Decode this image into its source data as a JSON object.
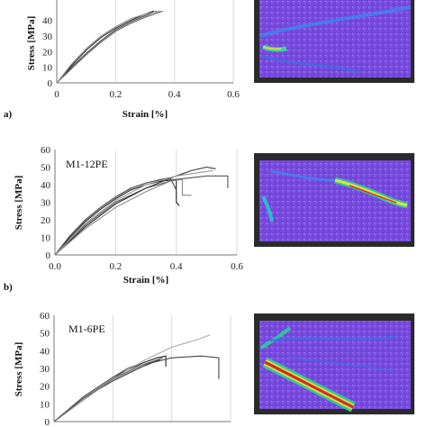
{
  "panels": [
    {
      "panel_label": "a)",
      "series_label": "",
      "chart_data": {
        "type": "line",
        "title": "",
        "xlabel": "Strain [%]",
        "ylabel": "Stress [MPa]",
        "xlim": [
          0,
          0.6
        ],
        "ylim": [
          0,
          60
        ],
        "xticks": [
          "0",
          "0.2",
          "0.4",
          "0.6"
        ],
        "yticks": [
          "0",
          "10",
          "20",
          "30",
          "40"
        ],
        "grid": "vertical",
        "series": [
          {
            "color": "#222222",
            "x": [
              0,
              0.05,
              0.1,
              0.15,
              0.2,
              0.25,
              0.3,
              0.33
            ],
            "y": [
              0,
              11,
              21,
              29,
              35,
              40,
              44,
              46
            ]
          },
          {
            "color": "#444444",
            "x": [
              0,
              0.05,
              0.1,
              0.15,
              0.2,
              0.25,
              0.3,
              0.34
            ],
            "y": [
              0,
              10,
              19,
              27,
              34,
              39,
              43,
              46
            ]
          },
          {
            "color": "#666666",
            "x": [
              0,
              0.05,
              0.1,
              0.15,
              0.2,
              0.25,
              0.3,
              0.36
            ],
            "y": [
              0,
              9,
              18,
              26,
              33,
              38,
              42,
              46
            ]
          },
          {
            "color": "#999999",
            "x": [
              0,
              0.05,
              0.1,
              0.15,
              0.2,
              0.25,
              0.3,
              0.35
            ],
            "y": [
              0,
              12,
              22,
              30,
              36,
              41,
              44,
              46
            ]
          }
        ]
      }
    },
    {
      "panel_label": "b)",
      "series_label": "M1-12PE",
      "chart_data": {
        "type": "line",
        "title": "",
        "xlabel": "Strain [%]",
        "ylabel": "Stress [MPa]",
        "xlim": [
          0,
          0.6
        ],
        "ylim": [
          0,
          60
        ],
        "xticks": [
          "0.0",
          "0.2",
          "0.4",
          "0.6"
        ],
        "yticks": [
          "0",
          "10",
          "20",
          "30",
          "40",
          "50",
          "60"
        ],
        "grid": "vertical",
        "series": [
          {
            "color": "#222222",
            "x": [
              0,
              0.05,
              0.1,
              0.15,
              0.2,
              0.25,
              0.3,
              0.35,
              0.4,
              0.4,
              0.41
            ],
            "y": [
              0,
              10,
              19,
              26,
              32,
              37,
              40,
              42,
              43,
              30,
              28
            ]
          },
          {
            "color": "#444444",
            "x": [
              0,
              0.05,
              0.1,
              0.15,
              0.2,
              0.25,
              0.3,
              0.35,
              0.38,
              0.4
            ],
            "y": [
              0,
              11,
              20,
              27,
              33,
              38,
              41,
              43,
              44,
              37
            ]
          },
          {
            "color": "#555555",
            "x": [
              0,
              0.1,
              0.2,
              0.3,
              0.4,
              0.5,
              0.57,
              0.57
            ],
            "y": [
              0,
              17,
              30,
              38,
              43,
              45,
              45,
              38
            ]
          },
          {
            "color": "#333333",
            "x": [
              0,
              0.1,
              0.2,
              0.3,
              0.4,
              0.45,
              0.5,
              0.53
            ],
            "y": [
              0,
              16,
              29,
              38,
              45,
              48,
              50,
              49
            ]
          },
          {
            "color": "#999999",
            "x": [
              0,
              0.1,
              0.2,
              0.3,
              0.4,
              0.48,
              0.52
            ],
            "y": [
              0,
              18,
              31,
              40,
              45,
              47,
              48
            ]
          },
          {
            "color": "#888888",
            "x": [
              0,
              0.1,
              0.2,
              0.3,
              0.38,
              0.42,
              0.42,
              0.45
            ],
            "y": [
              0,
              15,
              27,
              36,
              42,
              43,
              34,
              34
            ]
          }
        ]
      }
    },
    {
      "panel_label": "",
      "series_label": "M1-6PE",
      "chart_data": {
        "type": "line",
        "title": "",
        "xlabel": "",
        "ylabel": "Stress [MPa]",
        "xlim": [
          0,
          0.6
        ],
        "ylim": [
          0,
          60
        ],
        "xticks": [],
        "yticks": [
          "0",
          "10",
          "20",
          "30",
          "40",
          "50",
          "60"
        ],
        "grid": "vertical",
        "series": [
          {
            "color": "#222222",
            "x": [
              0,
              0.1,
              0.2,
              0.3,
              0.35,
              0.38,
              0.38
            ],
            "y": [
              0,
              14,
              25,
              33,
              36,
              37,
              31
            ]
          },
          {
            "color": "#444444",
            "x": [
              0,
              0.1,
              0.2,
              0.3,
              0.4,
              0.5,
              0.56,
              0.56
            ],
            "y": [
              0,
              13,
              24,
              32,
              36,
              37,
              36,
              24
            ]
          },
          {
            "color": "#333333",
            "x": [
              0,
              0.1,
              0.2,
              0.3,
              0.36
            ],
            "y": [
              0,
              13,
              23,
              31,
              35
            ]
          },
          {
            "color": "#555555",
            "x": [
              0,
              0.1,
              0.2,
              0.25,
              0.28
            ],
            "y": [
              0,
              14,
              25,
              30,
              32
            ]
          },
          {
            "color": "#aaaaaa",
            "x": [
              0,
              0.1,
              0.2,
              0.3,
              0.4,
              0.5,
              0.53
            ],
            "y": [
              0,
              12,
              24,
              34,
              42,
              47,
              49
            ]
          },
          {
            "color": "#666666",
            "x": [
              0,
              0.1,
              0.2,
              0.3,
              0.37
            ],
            "y": [
              0,
              13,
              24,
              32,
              36
            ]
          }
        ]
      }
    }
  ]
}
